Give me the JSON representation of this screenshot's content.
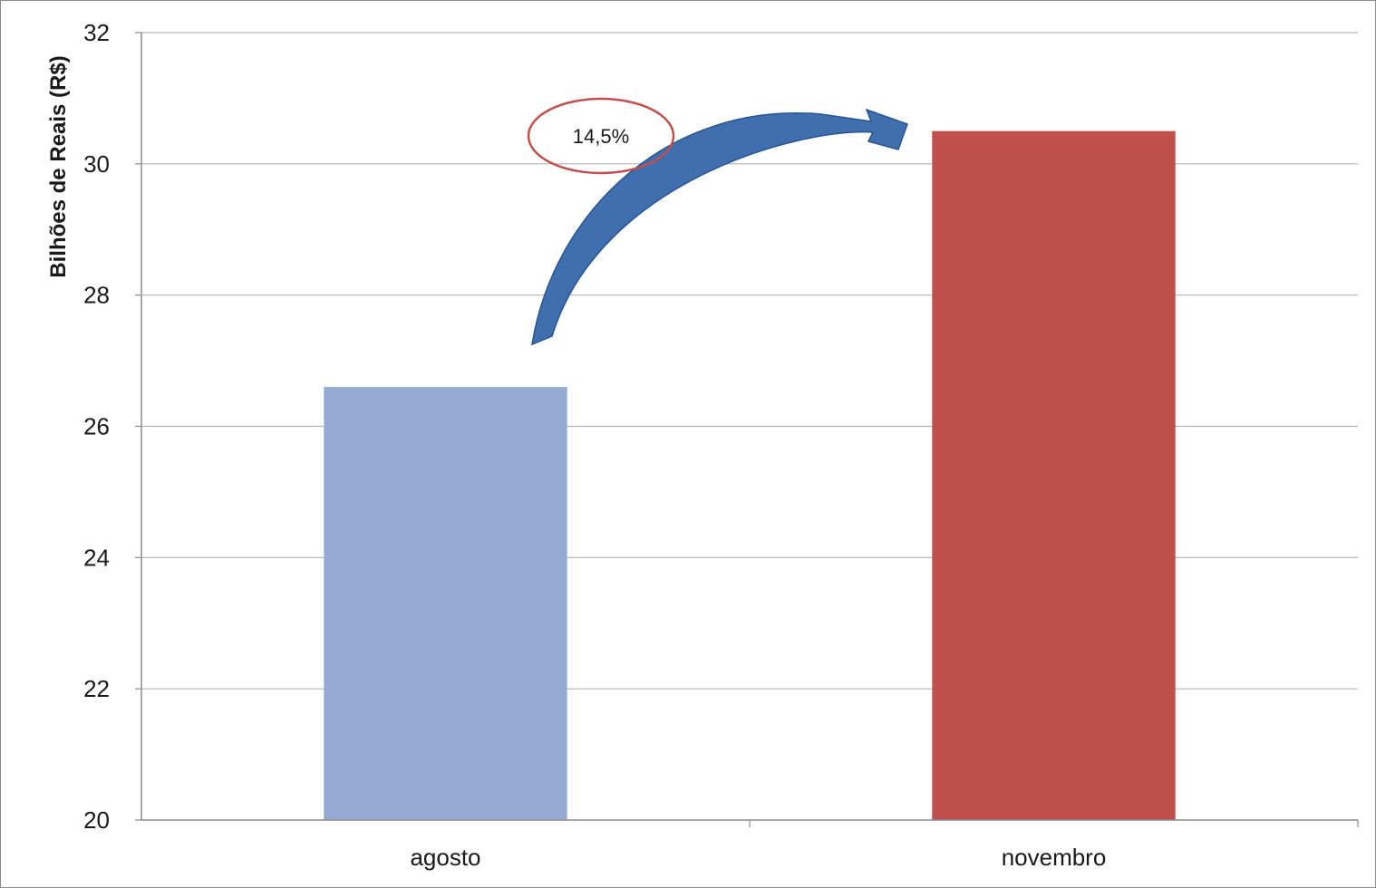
{
  "chart_data": {
    "type": "bar",
    "categories": [
      "agosto",
      "novembro"
    ],
    "values": [
      26.6,
      30.5
    ],
    "bar_colors": [
      "#95abd3",
      "#c0504d"
    ],
    "title": "",
    "xlabel": "",
    "ylabel": "Bilhões de Reais (R$)",
    "ylim": [
      20,
      32
    ],
    "yticks": [
      "20",
      "22",
      "24",
      "26",
      "28",
      "30",
      "32"
    ],
    "ytick_values": [
      20,
      22,
      24,
      26,
      28,
      30,
      32
    ],
    "grid": true,
    "legend": "none",
    "annotation": {
      "text": "14,5%",
      "ellipse_color": "#c0504d",
      "arrow_color": "#3f6fae",
      "arrow_from": "agosto",
      "arrow_to": "novembro"
    }
  }
}
